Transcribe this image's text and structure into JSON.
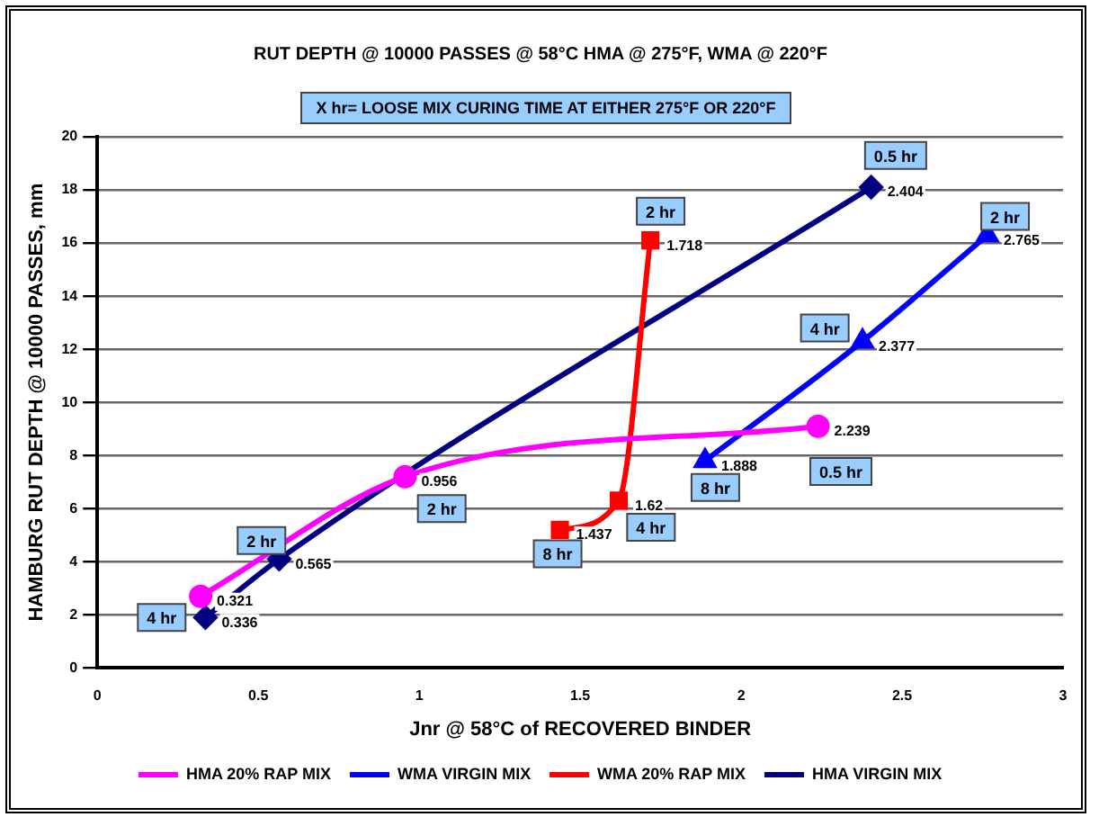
{
  "chart_data": {
    "type": "line",
    "title": "RUT DEPTH @ 10000 PASSES @ 58°C HMA @ 275°F, WMA @ 220°F",
    "subtitle": "X hr= LOOSE MIX CURING TIME AT EITHER 275°F OR 220°F",
    "xlabel": "Jnr @ 58°C of RECOVERED BINDER",
    "ylabel": "HAMBURG RUT DEPTH @ 10000 PASSES, mm",
    "xlim": [
      0,
      3
    ],
    "xticks": [
      0,
      0.5,
      1,
      1.5,
      2,
      2.5,
      3
    ],
    "ylim": [
      0,
      20
    ],
    "yticks": [
      0,
      2,
      4,
      6,
      8,
      10,
      12,
      14,
      16,
      18,
      20
    ],
    "grid": "y",
    "legend": "bottom",
    "series": [
      {
        "name": "HMA 20% RAP MIX",
        "color": "#ff00ff",
        "marker": "circle",
        "x": [
          0.321,
          0.956,
          2.239
        ],
        "values": [
          2.7,
          7.2,
          9.1
        ]
      },
      {
        "name": "WMA VIRGIN MIX",
        "color": "#0000ff",
        "marker": "triangle",
        "x": [
          2.765,
          2.377,
          1.888
        ],
        "values": [
          16.3,
          12.3,
          7.8
        ]
      },
      {
        "name": "WMA 20% RAP MIX",
        "color": "#ff0000",
        "marker": "square",
        "x": [
          1.437,
          1.62,
          1.718
        ],
        "values": [
          5.2,
          6.3,
          16.1
        ]
      },
      {
        "name": "HMA VIRGIN MIX",
        "color": "#000080",
        "marker": "diamond",
        "x": [
          0.336,
          0.565,
          2.404
        ],
        "values": [
          1.9,
          4.1,
          18.1
        ]
      }
    ],
    "annotations": [
      {
        "text": "0.321",
        "x": 0.321,
        "y": 2.7
      },
      {
        "text": "0.956",
        "x": 0.956,
        "y": 7.2
      },
      {
        "text": "2.239",
        "x": 2.239,
        "y": 9.1
      },
      {
        "text": "2.765",
        "x": 2.765,
        "y": 16.3
      },
      {
        "text": "2.377",
        "x": 2.377,
        "y": 12.3
      },
      {
        "text": "1.888",
        "x": 1.888,
        "y": 7.8
      },
      {
        "text": "1.437",
        "x": 1.437,
        "y": 5.2
      },
      {
        "text": "1.62",
        "x": 1.62,
        "y": 6.3
      },
      {
        "text": "1.718",
        "x": 1.718,
        "y": 16.1
      },
      {
        "text": "0.336",
        "x": 0.336,
        "y": 1.9
      },
      {
        "text": "0.565",
        "x": 0.565,
        "y": 4.1
      },
      {
        "text": "2.404",
        "x": 2.404,
        "y": 18.1
      },
      {
        "text": "4 hr",
        "x": 0.2,
        "y": 1.9
      },
      {
        "text": "2 hr",
        "x": 0.51,
        "y": 4.8
      },
      {
        "text": "2 hr",
        "x": 1.07,
        "y": 6.0
      },
      {
        "text": "8 hr",
        "x": 1.43,
        "y": 4.3
      },
      {
        "text": "4 hr",
        "x": 1.72,
        "y": 5.3
      },
      {
        "text": "8 hr",
        "x": 1.92,
        "y": 6.8
      },
      {
        "text": "0.5 hr",
        "x": 2.31,
        "y": 7.4
      },
      {
        "text": "4 hr",
        "x": 2.26,
        "y": 12.8
      },
      {
        "text": "2 hr",
        "x": 2.82,
        "y": 17.0
      },
      {
        "text": "0.5 hr",
        "x": 2.48,
        "y": 19.3
      },
      {
        "text": "2 hr",
        "x": 1.75,
        "y": 17.2
      }
    ]
  }
}
